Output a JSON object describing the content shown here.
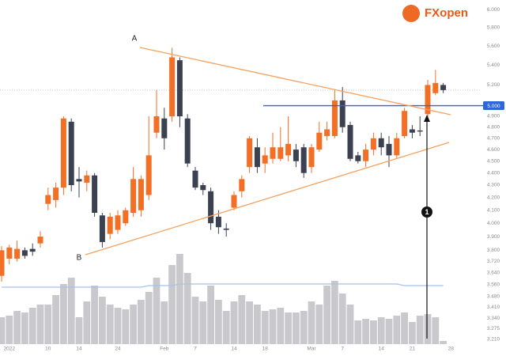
{
  "chart_data": {
    "type": "candlestick",
    "categories": [
      null,
      "2022",
      null,
      null,
      null,
      null,
      "10",
      null,
      null,
      null,
      "14",
      null,
      null,
      null,
      null,
      "24",
      null,
      null,
      null,
      null,
      null,
      "Feb",
      null,
      null,
      null,
      "7",
      null,
      null,
      null,
      null,
      "14",
      null,
      null,
      null,
      "18",
      null,
      null,
      null,
      null,
      null,
      "Mar",
      null,
      null,
      null,
      "7",
      null,
      null,
      null,
      null,
      "14",
      null,
      null,
      null,
      "21",
      null,
      null,
      null,
      null,
      "28"
    ],
    "open": [
      3.62,
      3.74,
      3.74,
      3.8,
      3.81,
      3.85,
      4.15,
      4.18,
      4.28,
      4.85,
      4.35,
      4.32,
      4.38,
      4.06,
      3.92,
      3.95,
      4.0,
      4.08,
      4.1,
      4.22,
      4.75,
      4.88,
      4.9,
      5.45,
      4.88,
      4.42,
      4.3,
      4.25,
      4.05,
      3.96,
      4.12,
      4.25,
      4.45,
      4.62,
      4.48,
      4.52,
      4.52,
      4.55,
      4.6,
      4.62,
      4.45,
      4.6,
      4.72,
      4.72,
      5.05,
      4.82,
      4.55,
      4.5,
      4.6,
      4.7,
      4.65,
      4.55,
      4.72,
      4.78,
      4.77,
      4.92,
      5.12,
      5.2,
      null
    ],
    "high": [
      3.83,
      3.84,
      3.87,
      3.82,
      3.85,
      3.94,
      4.28,
      4.32,
      4.9,
      4.88,
      4.45,
      4.42,
      4.4,
      4.08,
      4.08,
      4.1,
      4.12,
      4.45,
      4.38,
      4.9,
      5.15,
      4.98,
      5.58,
      5.48,
      4.92,
      4.45,
      4.32,
      4.28,
      4.1,
      4.0,
      4.25,
      4.38,
      4.72,
      4.7,
      4.62,
      4.75,
      4.8,
      4.9,
      4.65,
      4.65,
      4.65,
      4.85,
      4.85,
      5.15,
      5.18,
      4.85,
      4.58,
      4.65,
      4.75,
      4.75,
      4.72,
      4.75,
      4.98,
      4.82,
      4.9,
      5.25,
      5.35,
      5.22,
      null
    ],
    "low": [
      3.58,
      3.7,
      3.72,
      3.74,
      3.76,
      3.82,
      4.1,
      4.12,
      4.22,
      4.25,
      4.2,
      4.25,
      4.05,
      3.82,
      3.88,
      3.92,
      3.98,
      4.05,
      4.05,
      4.18,
      4.7,
      4.6,
      4.85,
      4.8,
      4.45,
      4.26,
      4.22,
      3.95,
      3.92,
      3.9,
      4.1,
      4.2,
      4.4,
      4.4,
      4.4,
      4.48,
      4.5,
      4.5,
      4.45,
      4.36,
      4.4,
      4.58,
      4.68,
      4.7,
      4.75,
      4.5,
      4.48,
      4.45,
      4.55,
      4.55,
      4.45,
      4.52,
      4.7,
      4.7,
      4.72,
      4.85,
      5.1,
      5.12,
      null
    ],
    "close": [
      3.8,
      3.82,
      3.81,
      3.76,
      3.79,
      3.9,
      4.22,
      4.28,
      4.88,
      4.3,
      4.33,
      4.38,
      4.08,
      3.86,
      4.05,
      4.06,
      4.1,
      4.35,
      4.35,
      4.55,
      4.9,
      4.7,
      5.48,
      4.9,
      4.48,
      4.28,
      4.26,
      4.0,
      3.97,
      3.95,
      4.22,
      4.35,
      4.7,
      4.45,
      4.55,
      4.62,
      4.62,
      4.65,
      4.5,
      4.4,
      4.62,
      4.75,
      4.78,
      5.05,
      4.8,
      4.52,
      4.5,
      4.6,
      4.7,
      4.62,
      4.55,
      4.7,
      4.95,
      4.75,
      4.76,
      5.2,
      5.22,
      5.15,
      null
    ],
    "up_color": "#f26f25",
    "down_color": "#3b4150",
    "ylim": [
      3.18,
      6.11
    ],
    "log_scale": true,
    "yticks": [
      {
        "value": 6,
        "label": "6.000"
      },
      {
        "value": 5.8,
        "label": "5.800"
      },
      {
        "value": 5.6,
        "label": "5.600"
      },
      {
        "value": 5.4,
        "label": "5.400"
      },
      {
        "value": 5.2,
        "label": "5.200"
      },
      {
        "value": 4.9,
        "label": "4.900"
      },
      {
        "value": 4.8,
        "label": "4.800"
      },
      {
        "value": 4.7,
        "label": "4.700"
      },
      {
        "value": 4.6,
        "label": "4.600"
      },
      {
        "value": 4.5,
        "label": "4.500"
      },
      {
        "value": 4.4,
        "label": "4.400"
      },
      {
        "value": 4.3,
        "label": "4.300"
      },
      {
        "value": 4.2,
        "label": "4.200"
      },
      {
        "value": 4.1,
        "label": "4.100"
      },
      {
        "value": 4,
        "label": "4.000"
      },
      {
        "value": 3.9,
        "label": "3.900"
      },
      {
        "value": 3.8,
        "label": "3.800"
      },
      {
        "value": 3.72,
        "label": "3.720"
      },
      {
        "value": 3.64,
        "label": "3.640"
      },
      {
        "value": 3.56,
        "label": "3.560"
      },
      {
        "value": 3.48,
        "label": "3.480"
      },
      {
        "value": 3.41,
        "label": "3.410"
      },
      {
        "value": 3.34,
        "label": "3.340"
      },
      {
        "value": 3.275,
        "label": "3.275"
      },
      {
        "value": 3.21,
        "label": "3.210"
      }
    ],
    "price_line": {
      "value": 5,
      "label": "5.000",
      "color": "#2f67d8"
    },
    "volume": {
      "values": [
        17,
        18,
        21,
        20,
        23,
        25,
        25,
        31,
        38,
        42,
        17,
        27,
        37,
        30,
        25,
        23,
        22,
        25,
        28,
        33,
        42,
        27,
        50,
        57,
        45,
        30,
        27,
        37,
        28,
        21,
        27,
        31,
        27,
        25,
        21,
        22,
        23,
        20,
        20,
        21,
        27,
        25,
        37,
        40,
        32,
        25,
        15,
        16,
        15,
        17,
        16,
        18,
        20,
        14,
        18,
        19,
        17,
        2,
        null
      ],
      "color": "#c9c9cd",
      "axis": "y2"
    },
    "volume_ma": {
      "values": [
        36,
        36,
        36,
        36,
        36,
        36,
        36,
        36,
        36,
        36,
        36,
        36,
        36,
        36,
        36,
        36,
        36,
        36,
        36,
        37,
        37,
        37,
        37,
        38,
        38,
        38,
        38,
        38,
        38,
        38,
        38,
        38,
        38,
        38,
        38,
        38,
        38,
        38,
        38,
        38,
        38,
        38,
        38,
        38,
        38,
        38,
        38,
        38,
        38,
        38,
        38,
        38,
        37,
        37,
        37,
        37,
        37,
        37,
        null
      ],
      "color": "#a9c1ea",
      "axis": "y2"
    },
    "y2lim": [
      0,
      100
    ],
    "annotations": [
      "A",
      "B",
      "1"
    ]
  },
  "logo": {
    "text": "FXopen"
  }
}
